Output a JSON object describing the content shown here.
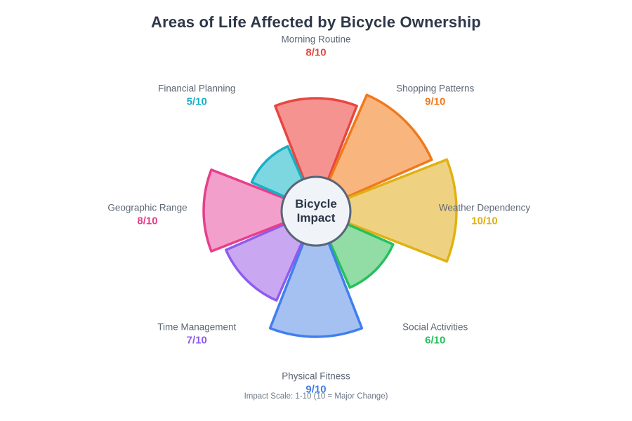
{
  "title": "Areas of Life Affected by Bicycle Ownership",
  "center": {
    "line1": "Bicycle",
    "line2": "Impact"
  },
  "footer": "Impact Scale: 1-10 (10 = Major Change)",
  "colors": {
    "background": "#FFFFFF",
    "title_text": "#2D3748",
    "category_label_text": "#5D6775",
    "footer_text": "#6E7987",
    "center_fill": "#F0F4F9",
    "center_stroke": "#5A6577",
    "center_text": "#2D3748"
  },
  "chart_data": {
    "type": "polar-area",
    "title": "Areas of Life Affected by Bicycle Ownership",
    "center_label": "Bicycle Impact",
    "annotation": "Impact Scale: 1-10 (10 = Major Change)",
    "order": "clockwise-from-top",
    "sector_angle_deg": 45,
    "scale_min": 1,
    "scale_max": 10,
    "categories": [
      "Morning Routine",
      "Shopping Patterns",
      "Weather Dependency",
      "Social Activities",
      "Physical Fitness",
      "Time Management",
      "Geographic Range",
      "Financial Planning"
    ],
    "values": [
      8,
      9,
      10,
      6,
      9,
      7,
      8,
      5
    ],
    "value_labels": [
      "8/10",
      "9/10",
      "10/10",
      "6/10",
      "9/10",
      "7/10",
      "8/10",
      "5/10"
    ],
    "fill_colors": [
      "#F59390",
      "#F9B57E",
      "#EFD281",
      "#92DCA5",
      "#A4C1F1",
      "#C9A8F1",
      "#F2A0CB",
      "#7CD7E0"
    ],
    "stroke_colors": [
      "#E8463F",
      "#F0791C",
      "#E0B112",
      "#25C05C",
      "#417EEE",
      "#8C5CF0",
      "#E83E8C",
      "#16AFC6"
    ]
  }
}
